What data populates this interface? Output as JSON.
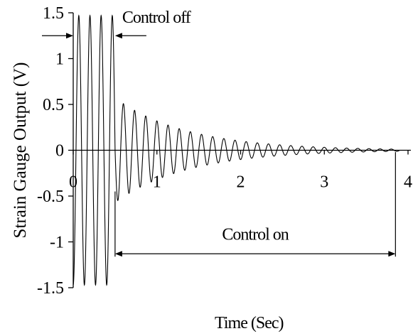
{
  "chart_data": {
    "type": "line",
    "title": "",
    "xlabel": "Time (Sec)",
    "ylabel": "Strain Gauge Output (V)",
    "xlim": [
      0,
      4
    ],
    "ylim": [
      -1.5,
      1.5
    ],
    "x_ticks": [
      "0",
      "1",
      "2",
      "3",
      "4"
    ],
    "y_ticks": [
      "1.5",
      "1",
      "0.5",
      "0",
      "-0.5",
      "-1",
      "-1.5"
    ],
    "grid": false,
    "legend": "none",
    "annotations": {
      "control_off": "Control off",
      "control_on": "Control on",
      "control_off_range": [
        0.0,
        0.5
      ],
      "control_on_range": [
        0.5,
        3.85
      ]
    },
    "series": [
      {
        "values_description_free": true,
        "oscillation_frequency_hz": 7.5,
        "control_switch_time": 0.5,
        "amplitude_before_control": 1.47,
        "amplitude_at_switch": 0.57,
        "decay_rate_per_sec": 1.15,
        "end_time": 3.9,
        "points": [
          [
            0.0,
            -1.47
          ],
          [
            0.5,
            0.55
          ],
          [
            1.0,
            0.31
          ],
          [
            1.5,
            0.17
          ],
          [
            2.0,
            0.09
          ],
          [
            2.5,
            0.05
          ],
          [
            3.0,
            0.03
          ],
          [
            3.5,
            0.015
          ],
          [
            3.9,
            0.01
          ]
        ]
      }
    ]
  }
}
